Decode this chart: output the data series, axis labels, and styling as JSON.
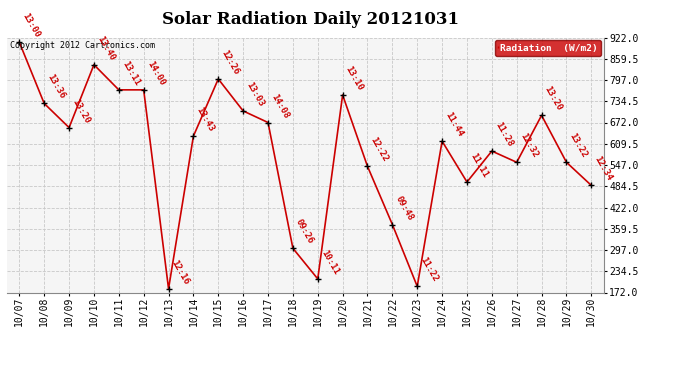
{
  "title": "Solar Radiation Daily 20121031",
  "copyright": "Copyright 2012 Cartronics.com",
  "legend_label": "Radiation  (W/m2)",
  "dates": [
    "10/07",
    "10/08",
    "10/09",
    "10/10",
    "10/11",
    "10/12",
    "10/13",
    "10/14",
    "10/15",
    "10/16",
    "10/17",
    "10/18",
    "10/19",
    "10/20",
    "10/21",
    "10/22",
    "10/23",
    "10/24",
    "10/25",
    "10/26",
    "10/27",
    "10/28",
    "10/29",
    "10/30"
  ],
  "values": [
    908,
    728,
    657,
    842,
    768,
    768,
    183,
    632,
    800,
    706,
    672,
    302,
    212,
    753,
    543,
    372,
    190,
    617,
    497,
    588,
    555,
    693,
    555,
    487
  ],
  "time_labels": [
    "13:00",
    "13:36",
    "13:20",
    "13:40",
    "13:11",
    "14:00",
    "12:16",
    "13:43",
    "12:26",
    "13:03",
    "14:08",
    "09:26",
    "10:11",
    "13:10",
    "12:22",
    "09:48",
    "11:22",
    "11:44",
    "11:11",
    "11:28",
    "12:32",
    "13:20",
    "13:22",
    "12:34"
  ],
  "line_color": "#cc0000",
  "marker_color": "#000000",
  "label_color": "#cc0000",
  "background_color": "#ffffff",
  "plot_bg_color": "#f5f5f5",
  "grid_color": "#c8c8c8",
  "ylim_min": 172.0,
  "ylim_max": 922.0,
  "yticks": [
    172.0,
    234.5,
    297.0,
    359.5,
    422.0,
    484.5,
    547.0,
    609.5,
    672.0,
    734.5,
    797.0,
    859.5,
    922.0
  ],
  "title_fontsize": 12,
  "label_fontsize": 6.5,
  "tick_fontsize": 7,
  "legend_bg": "#cc0000",
  "legend_text_color": "#ffffff"
}
